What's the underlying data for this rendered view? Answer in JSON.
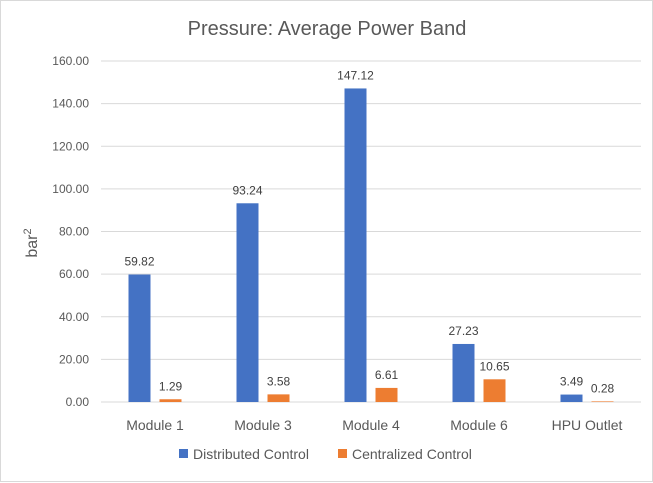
{
  "chart_data": {
    "type": "bar",
    "title": "Pressure: Average Power Band",
    "xlabel": "",
    "ylabel": "bar",
    "ylabel_superscript": "2",
    "ylim": [
      0,
      160
    ],
    "yticks": [
      "0.00",
      "20.00",
      "40.00",
      "60.00",
      "80.00",
      "100.00",
      "120.00",
      "140.00",
      "160.00"
    ],
    "categories": [
      "Module 1",
      "Module 3",
      "Module 4",
      "Module 6",
      "HPU Outlet"
    ],
    "series": [
      {
        "name": "Distributed Control",
        "color": "#4472c4",
        "values": [
          59.82,
          93.24,
          147.12,
          27.23,
          3.49
        ],
        "labels": [
          "59.82",
          "93.24",
          "147.12",
          "27.23",
          "3.49"
        ]
      },
      {
        "name": "Centralized Control",
        "color": "#ed7d31",
        "values": [
          1.29,
          3.58,
          6.61,
          10.65,
          0.28
        ],
        "labels": [
          "1.29",
          "3.58",
          "6.61",
          "10.65",
          "0.28"
        ]
      }
    ],
    "legend_position": "bottom",
    "grid": true
  }
}
